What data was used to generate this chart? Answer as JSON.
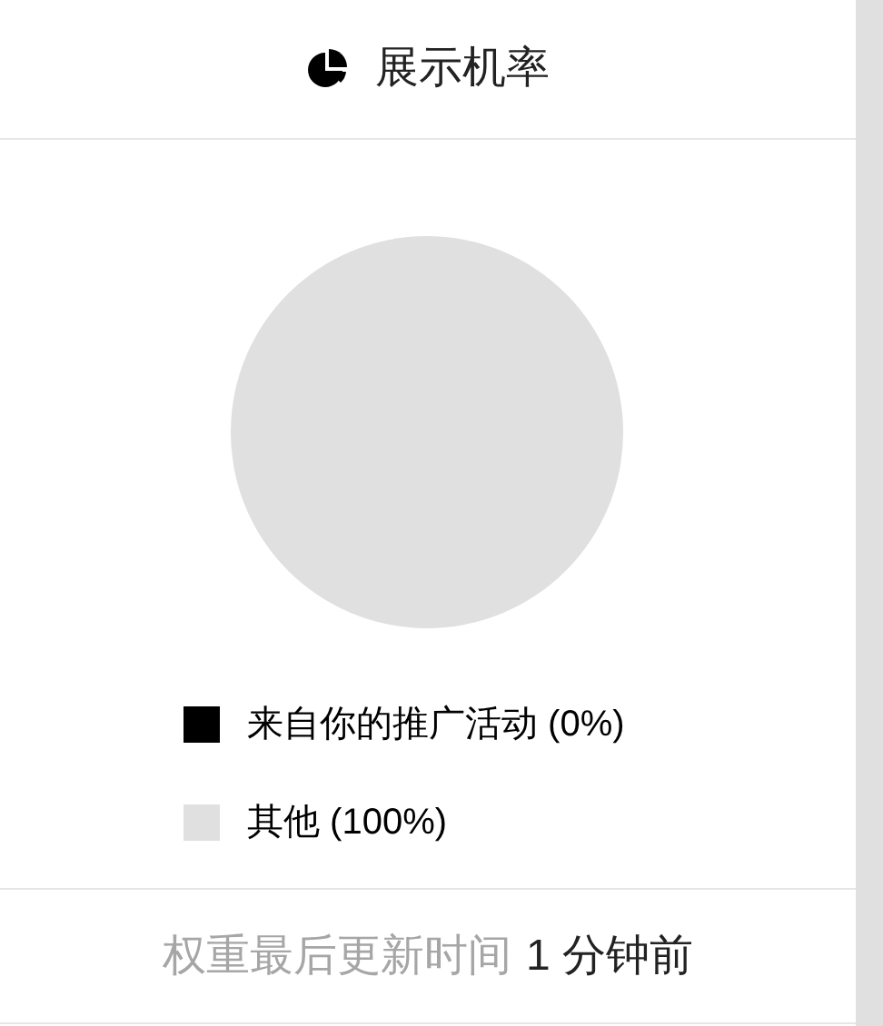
{
  "chart_data": {
    "type": "pie",
    "title": "展示机率",
    "categories": [
      "来自你的推广活动 (0%)",
      "其他 (100%)"
    ],
    "values": [
      0,
      100
    ],
    "colors": [
      "#000000",
      "#e0e0e0"
    ],
    "legend": "bottom",
    "annotations": [
      "权重最后更新时间",
      "1 分钟前"
    ]
  }
}
